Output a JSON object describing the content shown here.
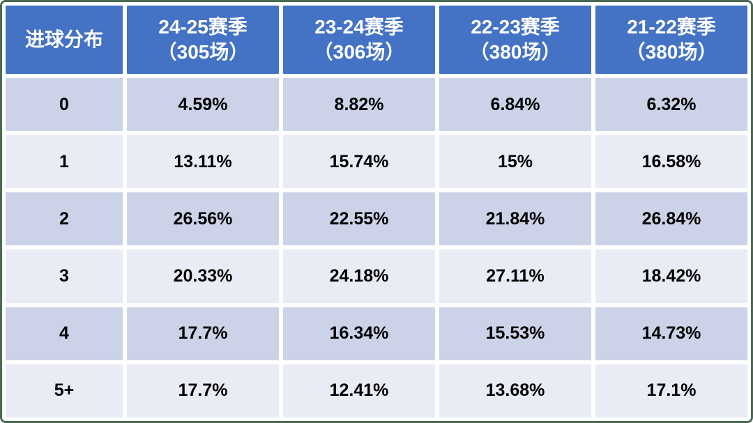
{
  "colors": {
    "header_bg": "#4472c4",
    "header_text": "#ffffff",
    "row_band_dark": "#ccd3e8",
    "row_band_light": "#e9ebf5",
    "value_text": "#000000",
    "outer_border": "#4a6b52",
    "gridline": "#ffffff"
  },
  "table": {
    "header": {
      "corner": "进球分布",
      "columns": [
        {
          "line1": "24-25赛季",
          "line2": "（305场）"
        },
        {
          "line1": "23-24赛季",
          "line2": "（306场）"
        },
        {
          "line1": "22-23赛季",
          "line2": "（380场）"
        },
        {
          "line1": "21-22赛季",
          "line2": "（380场）"
        }
      ]
    },
    "rows": [
      {
        "label": "0",
        "values": [
          "4.59%",
          "8.82%",
          "6.84%",
          "6.32%"
        ]
      },
      {
        "label": "1",
        "values": [
          "13.11%",
          "15.74%",
          "15%",
          "16.58%"
        ]
      },
      {
        "label": "2",
        "values": [
          "26.56%",
          "22.55%",
          "21.84%",
          "26.84%"
        ]
      },
      {
        "label": "3",
        "values": [
          "20.33%",
          "24.18%",
          "27.11%",
          "18.42%"
        ]
      },
      {
        "label": "4",
        "values": [
          "17.7%",
          "16.34%",
          "15.53%",
          "14.73%"
        ]
      },
      {
        "label": "5+",
        "values": [
          "17.7%",
          "12.41%",
          "13.68%",
          "17.1%"
        ]
      }
    ]
  },
  "chart_data": {
    "type": "table",
    "title": "进球分布",
    "categories": [
      "0",
      "1",
      "2",
      "3",
      "4",
      "5+"
    ],
    "series": [
      {
        "name": "24-25赛季（305场）",
        "values": [
          4.59,
          13.11,
          26.56,
          20.33,
          17.7,
          17.7
        ]
      },
      {
        "name": "23-24赛季（306场）",
        "values": [
          8.82,
          15.74,
          22.55,
          24.18,
          16.34,
          12.41
        ]
      },
      {
        "name": "22-23赛季（380场）",
        "values": [
          6.84,
          15.0,
          21.84,
          27.11,
          15.53,
          13.68
        ]
      },
      {
        "name": "21-22赛季（380场）",
        "values": [
          6.32,
          16.58,
          26.84,
          18.42,
          14.73,
          17.1
        ]
      }
    ],
    "value_unit": "%",
    "layout": "rows are goal counts, columns are seasons with match totals"
  }
}
